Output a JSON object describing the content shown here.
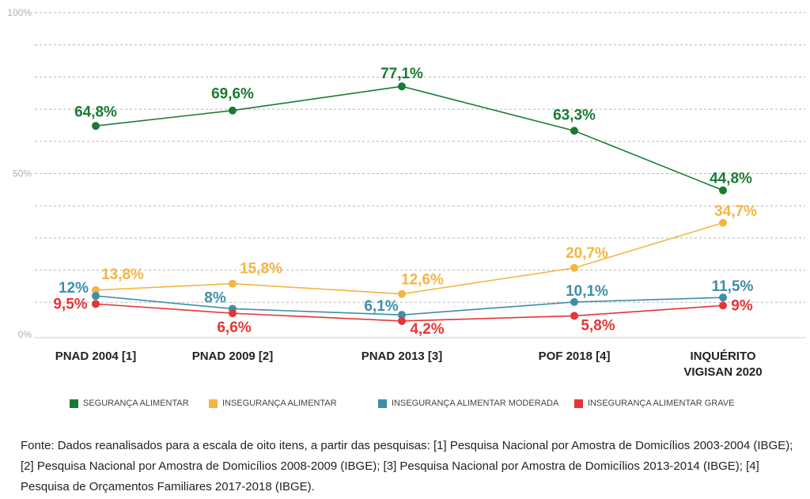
{
  "chart_data": {
    "type": "line",
    "categories": [
      "PNAD 2004 [1]",
      "PNAD 2009 [2]",
      "PNAD 2013 [3]",
      "POF 2018 [4]",
      "INQUÉRITO VIGISAN 2020"
    ],
    "y_ticks": [
      {
        "value": 0,
        "label": "0%"
      },
      {
        "value": 50,
        "label": "50%"
      },
      {
        "value": 100,
        "label": "100%"
      }
    ],
    "ylim": [
      0,
      100
    ],
    "grid": true,
    "legend_position": "bottom",
    "series": [
      {
        "name": "SEGURANÇA ALIMENTAR",
        "color": "#1a7a33",
        "values": [
          64.8,
          69.6,
          77.1,
          63.3,
          44.8
        ],
        "labels": [
          "64,8%",
          "69,6%",
          "77,1%",
          "63,3%",
          "44,8%"
        ]
      },
      {
        "name": "INSEGURANÇA ALIMENTAR",
        "color": "#f2b643",
        "values": [
          13.8,
          15.8,
          12.6,
          20.7,
          34.7
        ],
        "labels": [
          "13,8%",
          "15,8%",
          "12,6%",
          "20,7%",
          "34,7%"
        ]
      },
      {
        "name": "INSEGURANÇA ALIMENTAR MODERADA",
        "color": "#3e8ea8",
        "values": [
          12,
          8,
          6.1,
          10.1,
          11.5
        ],
        "labels": [
          "12%",
          "8%",
          "6,1%",
          "10,1%",
          "11,5%"
        ]
      },
      {
        "name": "INSEGURANÇA ALIMENTAR GRAVE",
        "color": "#e63535",
        "values": [
          9.5,
          6.6,
          4.2,
          5.8,
          9
        ],
        "labels": [
          "9,5%",
          "6,6%",
          "4,2%",
          "5,8%",
          "9%"
        ]
      }
    ]
  },
  "source_text": "Fonte: Dados reanalisados para a escala de oito itens, a partir das pesquisas: [1] Pesquisa Nacional por Amostra de Domicílios 2003-2004 (IBGE); [2] Pesquisa Nacional por Amostra de Domicílios 2008-2009 (IBGE); [3] Pesquisa Nacional por Amostra de Domicílios 2013-2014 (IBGE); [4] Pesquisa de Orçamentos Familiares 2017-2018 (IBGE)."
}
